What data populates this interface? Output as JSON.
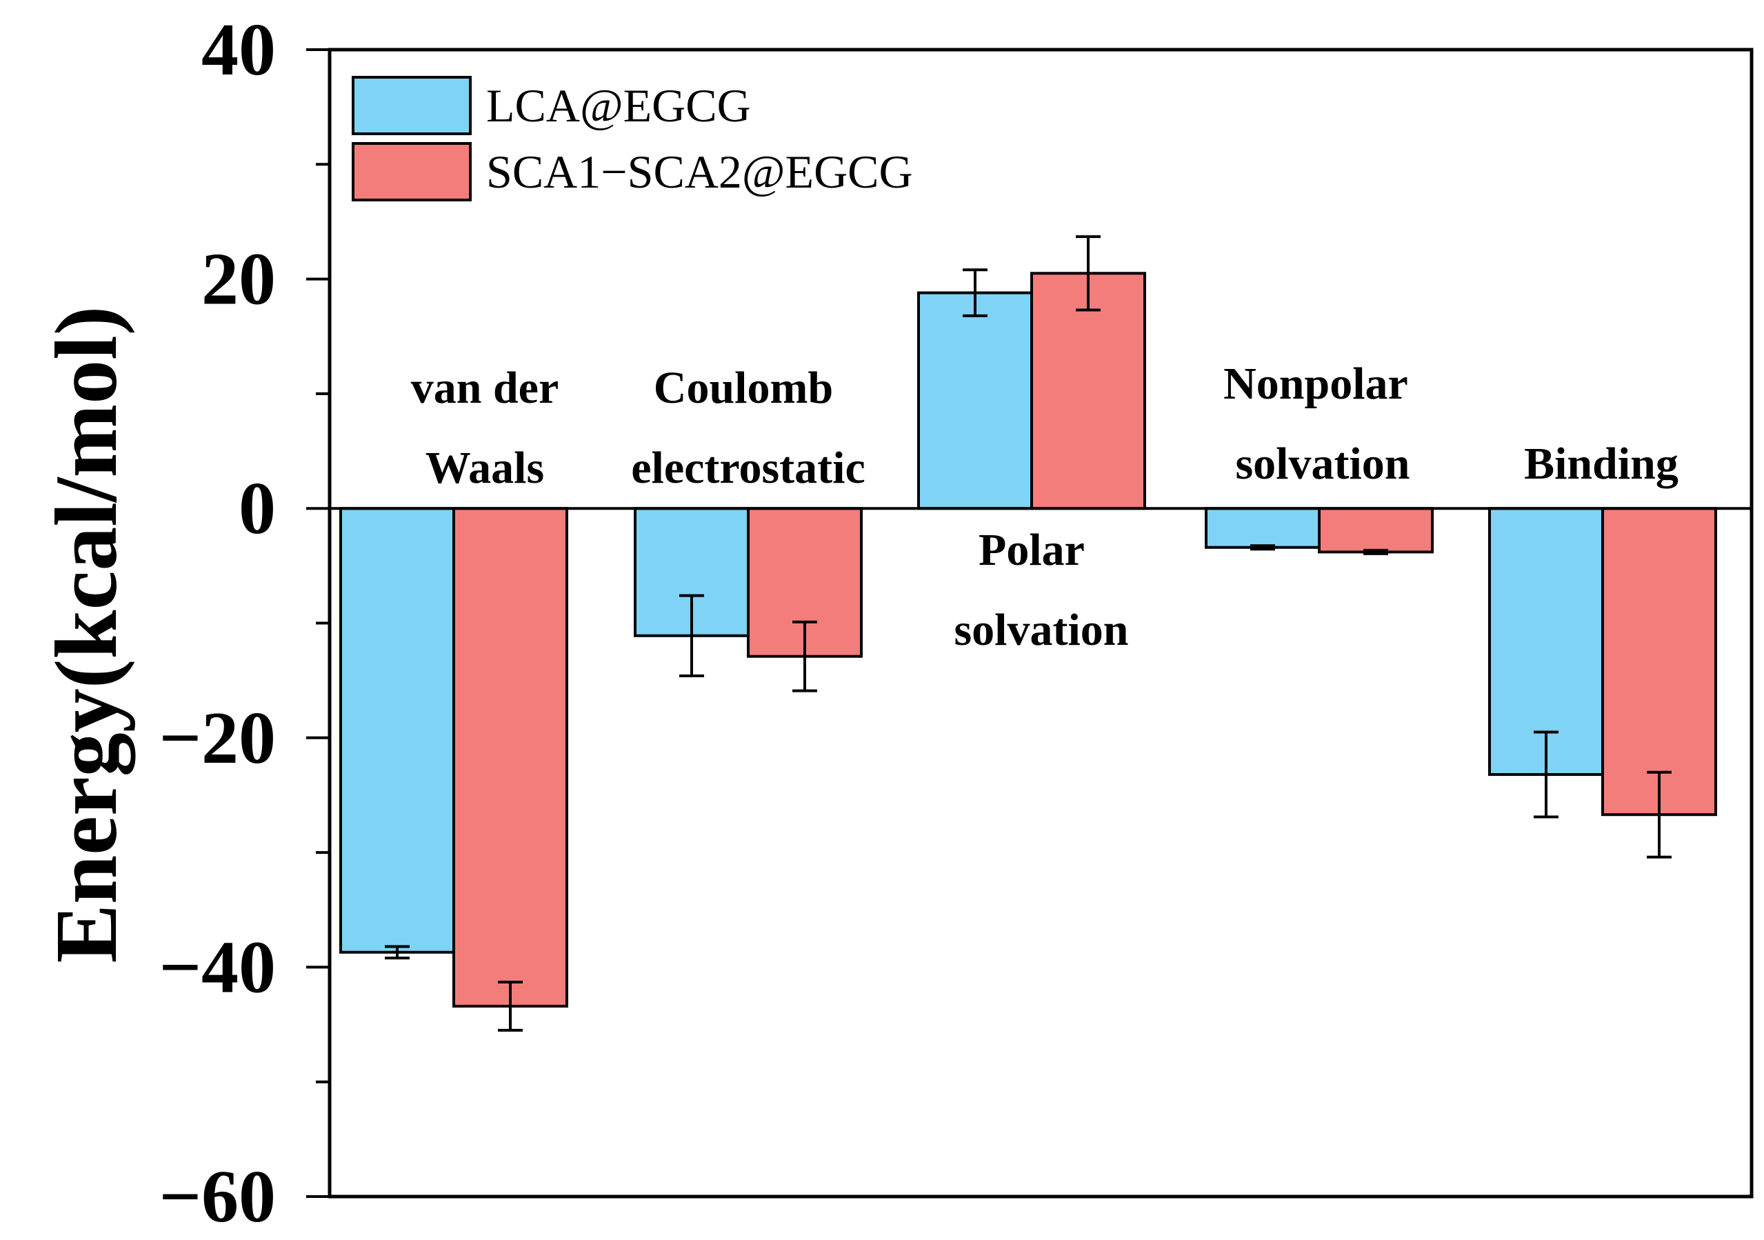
{
  "chart_data": {
    "type": "bar",
    "title": "",
    "xlabel": "",
    "ylabel": "Energy(kcal/mol)",
    "ylim": [
      -60,
      40
    ],
    "yticks": [
      40,
      20,
      0,
      -20,
      -40,
      -60
    ],
    "ytick_labels": [
      "40",
      "20",
      "0",
      "−20",
      "−40",
      "−60"
    ],
    "categories": [
      [
        "van der",
        "Waals"
      ],
      [
        "Coulomb",
        "electrostatic"
      ],
      [
        "Polar",
        "solvation"
      ],
      [
        "Nonpolar",
        "solvation"
      ],
      [
        "Binding"
      ]
    ],
    "series": [
      {
        "name": "LCA@EGCG",
        "color": "#7fd3f5",
        "values": [
          -38.7,
          -11.1,
          18.8,
          -3.4,
          -23.2
        ],
        "errors": [
          0.5,
          3.5,
          2.0,
          0.15,
          3.7
        ]
      },
      {
        "name": "SCA1−SCA2@EGCG",
        "color": "#f37d7b",
        "values": [
          -43.4,
          -12.9,
          20.5,
          -3.8,
          -26.7
        ],
        "errors": [
          2.1,
          3.0,
          3.2,
          0.15,
          3.7
        ]
      }
    ],
    "legend_position": "top-left"
  }
}
